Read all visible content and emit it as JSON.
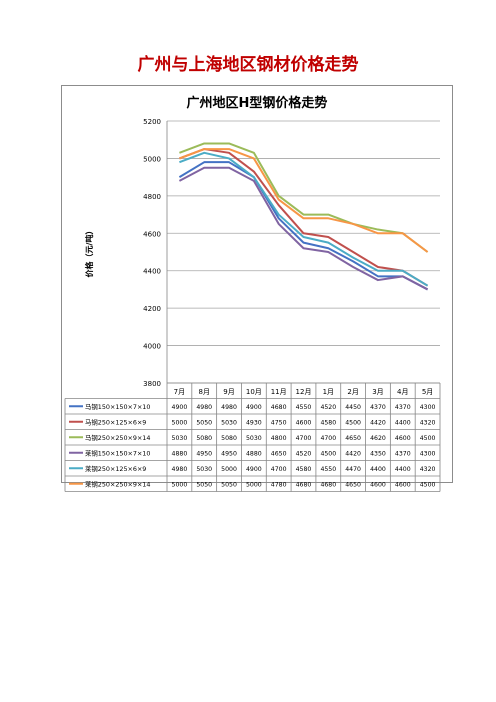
{
  "page": {
    "title": "广州与上海地区钢材价格走势"
  },
  "chart_data": {
    "type": "line",
    "title": "广州地区H型钢价格走势",
    "ylabel": "价格（元/吨）",
    "xlabel": "",
    "ylim": [
      3800,
      5200
    ],
    "yticks": [
      3800,
      4000,
      4200,
      4400,
      4600,
      4800,
      5000,
      5200
    ],
    "grid": true,
    "legend": "data-table",
    "categories": [
      "7月",
      "8月",
      "9月",
      "10月",
      "11月",
      "12月",
      "1月",
      "2月",
      "3月",
      "4月",
      "5月"
    ],
    "series": [
      {
        "name": "马钢150×150×7×10",
        "color": "#4472c4",
        "values": [
          4900,
          4980,
          4980,
          4900,
          4680,
          4550,
          4520,
          4450,
          4370,
          4370,
          4300
        ]
      },
      {
        "name": "马钢250×125×6×9",
        "color": "#c0504d",
        "values": [
          5000,
          5050,
          5030,
          4930,
          4750,
          4600,
          4580,
          4500,
          4420,
          4400,
          4320
        ]
      },
      {
        "name": "马钢250×250×9×14",
        "color": "#9bbb59",
        "values": [
          5030,
          5080,
          5080,
          5030,
          4800,
          4700,
          4700,
          4650,
          4620,
          4600,
          4500
        ]
      },
      {
        "name": "莱钢150×150×7×10",
        "color": "#8064a2",
        "values": [
          4880,
          4950,
          4950,
          4880,
          4650,
          4520,
          4500,
          4420,
          4350,
          4370,
          4300
        ]
      },
      {
        "name": "莱钢250×125×6×9",
        "color": "#4bacc6",
        "values": [
          4980,
          5030,
          5000,
          4900,
          4700,
          4580,
          4550,
          4470,
          4400,
          4400,
          4320
        ]
      },
      {
        "name": "莱钢250×250×9×14",
        "color": "#f79646",
        "values": [
          5000,
          5050,
          5050,
          5000,
          4780,
          4680,
          4680,
          4650,
          4600,
          4600,
          4500
        ]
      }
    ]
  }
}
